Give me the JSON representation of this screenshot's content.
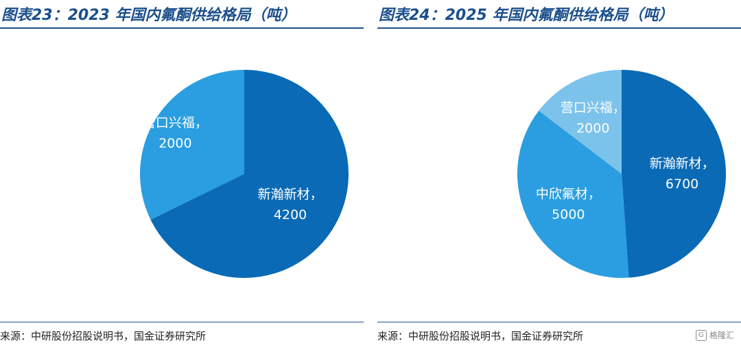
{
  "colors": {
    "dark": "#0a6ab5",
    "medium": "#2a9ee0",
    "light": "#7cc3ec",
    "title": "#1b4f8c"
  },
  "chart_data": [
    {
      "type": "pie",
      "title": "图表23：2023 年国内氟酮供给格局（吨）",
      "source": "来源：中研股份招股说明书，国金证券研究所",
      "slices": [
        {
          "name": "新瀚新材",
          "value": 4200,
          "label": "新瀚新材，",
          "value_label": "4200",
          "color": "#0a6ab5"
        },
        {
          "name": "营口兴福",
          "value": 2000,
          "label": "营口兴福，",
          "value_label": "2000",
          "color": "#2a9ee0"
        }
      ]
    },
    {
      "type": "pie",
      "title": "图表24：2025 年国内氟酮供给格局（吨）",
      "source": "来源：中研股份招股说明书，国金证券研究所",
      "slices": [
        {
          "name": "新瀚新材",
          "value": 6700,
          "label": "新瀚新材，",
          "value_label": "6700",
          "color": "#0a6ab5"
        },
        {
          "name": "中欣氟材",
          "value": 5000,
          "label": "中欣氟材，",
          "value_label": "5000",
          "color": "#2a9ee0"
        },
        {
          "name": "营口兴福",
          "value": 2000,
          "label": "营口兴福，",
          "value_label": "2000",
          "color": "#7cc3ec"
        }
      ]
    }
  ],
  "watermark": {
    "text": "格隆汇",
    "icon": "G"
  }
}
